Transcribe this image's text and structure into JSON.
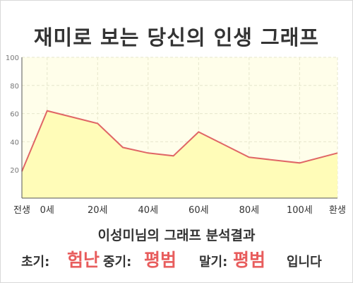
{
  "header": {
    "title": "재미로 보는 당신의 인생 그래프"
  },
  "chart_data": {
    "type": "area",
    "x": [
      -10,
      0,
      20,
      30,
      40,
      50,
      60,
      70,
      80,
      100,
      115
    ],
    "xticks": [
      {
        "x": -10,
        "label": "전생"
      },
      {
        "x": 0,
        "label": "0세"
      },
      {
        "x": 20,
        "label": "20세"
      },
      {
        "x": 40,
        "label": "40세"
      },
      {
        "x": 60,
        "label": "60세"
      },
      {
        "x": 80,
        "label": "80세"
      },
      {
        "x": 100,
        "label": "100세"
      },
      {
        "x": 115,
        "label": "환생"
      }
    ],
    "series": [
      {
        "values": [
          19,
          62,
          53,
          36,
          32,
          30,
          47,
          38,
          29,
          25,
          32
        ]
      }
    ],
    "yticks": [
      20,
      40,
      60,
      80,
      100
    ],
    "ylim": [
      0,
      100
    ],
    "xlim": [
      -10,
      115
    ],
    "grid": true,
    "colors": {
      "line": "#e06666",
      "fill": "#fffcb8",
      "plot_bg": "#fffeea",
      "grid": "#e6e6cc"
    }
  },
  "analysis": {
    "heading": "이성미님의 그래프 분석결과",
    "early_label": "초기:",
    "early_value": "험난",
    "middle_label": "중기:",
    "middle_value": "평범",
    "late_label": "말기:",
    "late_value": "평범",
    "ending": "입니다"
  }
}
